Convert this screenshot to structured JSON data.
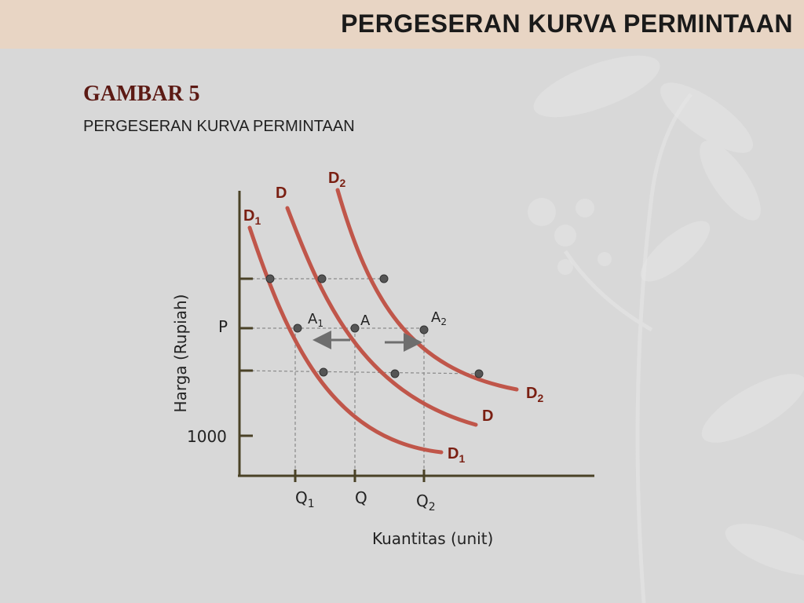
{
  "header": {
    "title": "PERGESERAN KURVA PERMINTAAN"
  },
  "figure": {
    "label": "GAMBAR 5",
    "subtitle": "PERGESERAN KURVA PERMINTAAN"
  },
  "axes": {
    "ylabel": "Harga (Rupiah)",
    "xlabel": "Kuantitas (unit)",
    "y_ticks": {
      "p": "P",
      "base": "1000"
    },
    "x_ticks": {
      "q1_main": "Q",
      "q1_sub": "1",
      "q_main": "Q",
      "q2_main": "Q",
      "q2_sub": "2"
    }
  },
  "curves": {
    "d1_main": "D",
    "d1_sub": "1",
    "d_main": "D",
    "d2_main": "D",
    "d2_sub": "2"
  },
  "points": {
    "a1_main": "A",
    "a1_sub": "1",
    "a_main": "A",
    "a2_main": "A",
    "a2_sub": "2"
  },
  "colors": {
    "curve": "#c0564a",
    "curve_label": "#7a1f12",
    "axis": "#4a4226",
    "header_bg": "#e8d5c4",
    "arrow": "#6e6e6e"
  }
}
